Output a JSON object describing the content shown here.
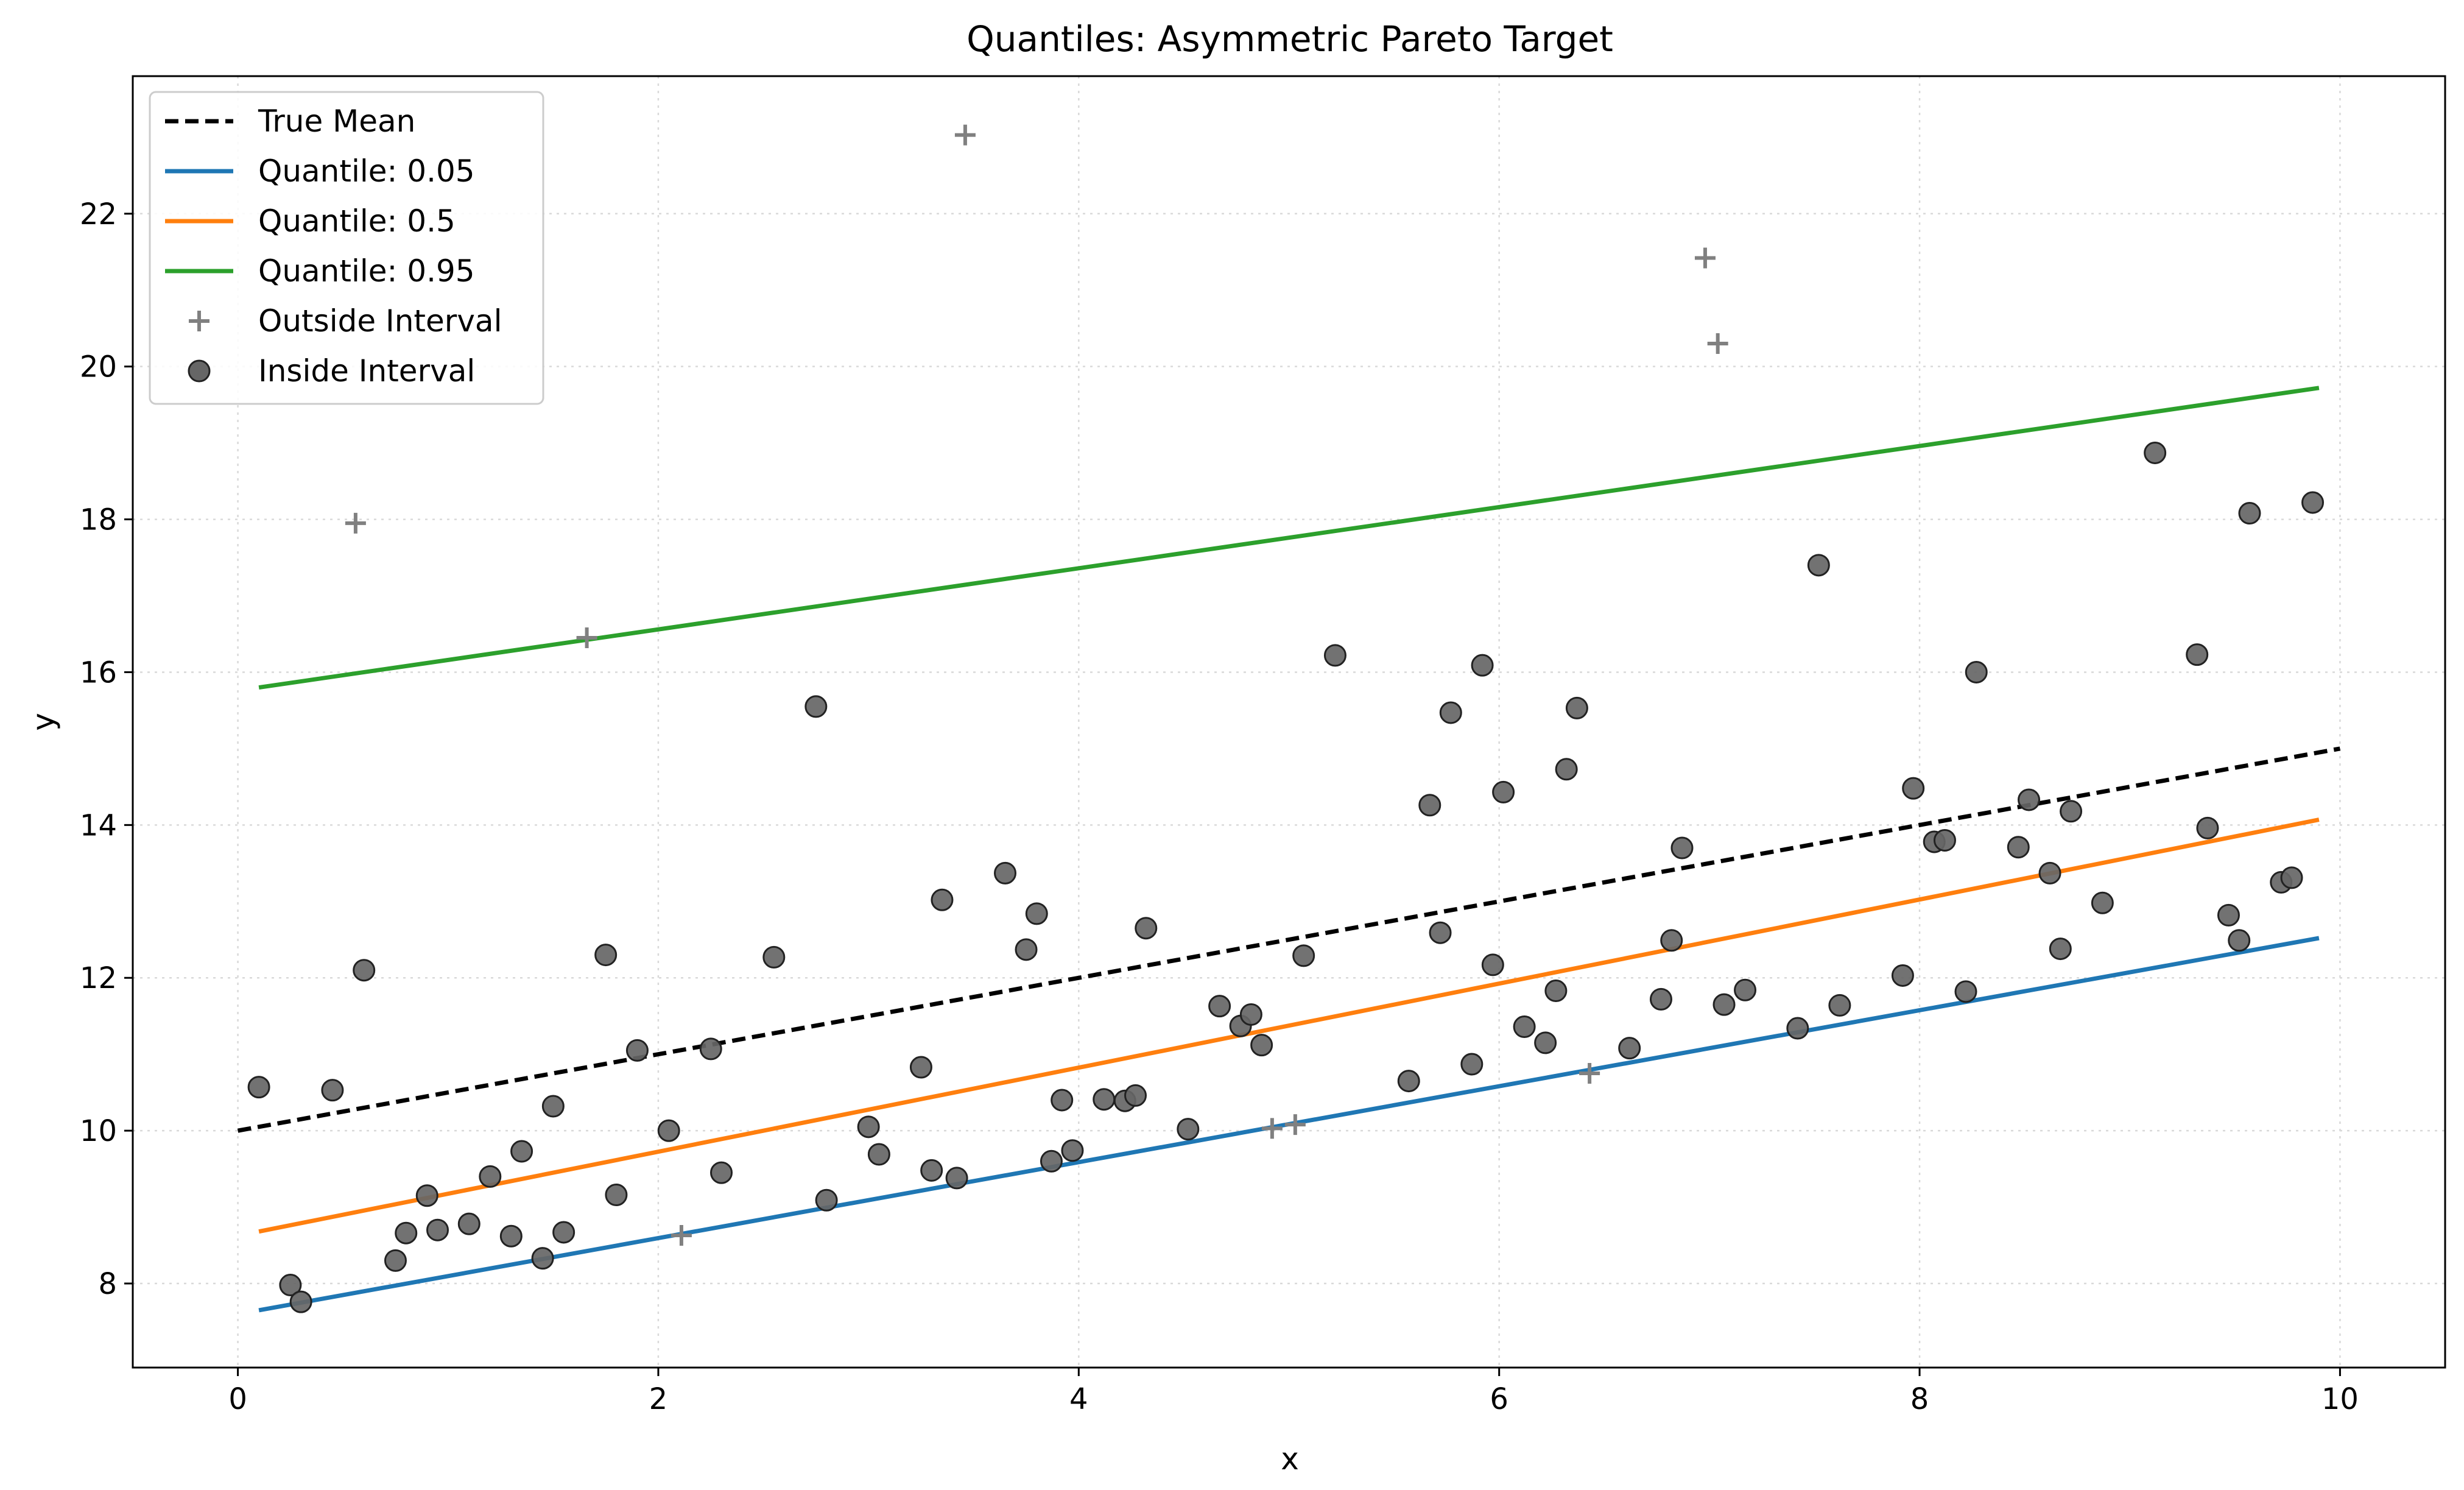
{
  "chart_data": {
    "type": "scatter",
    "title": "Quantiles: Asymmetric Pareto Target",
    "xlabel": "x",
    "ylabel": "y",
    "xlim": [
      -0.5,
      10.5
    ],
    "ylim": [
      6.9,
      23.8
    ],
    "xticks": [
      0,
      2,
      4,
      6,
      8,
      10
    ],
    "yticks": [
      8,
      10,
      12,
      14,
      16,
      18,
      20,
      22
    ],
    "grid": true,
    "legend_position": "top-left",
    "colors": {
      "true_mean": "#000000",
      "q05": "#1f77b4",
      "q50": "#ff7f0e",
      "q95": "#2ca02c",
      "outside": "#808080",
      "inside": "#666666"
    },
    "lines": [
      {
        "name": "True Mean",
        "style": "dashed",
        "color": "#000000",
        "x": [
          0,
          10
        ],
        "y": [
          10.0,
          15.0
        ]
      },
      {
        "name": "Quantile: 0.05",
        "style": "solid",
        "color": "#1f77b4",
        "x": [
          0.1,
          9.9
        ],
        "y": [
          7.65,
          12.52
        ]
      },
      {
        "name": "Quantile: 0.5",
        "style": "solid",
        "color": "#ff7f0e",
        "x": [
          0.1,
          9.9
        ],
        "y": [
          8.68,
          14.07
        ]
      },
      {
        "name": "Quantile: 0.95",
        "style": "solid",
        "color": "#2ca02c",
        "x": [
          0.1,
          9.9
        ],
        "y": [
          15.8,
          19.72
        ]
      }
    ],
    "outside_interval": {
      "name": "Outside Interval",
      "marker": "plus",
      "points": [
        [
          0.56,
          17.95
        ],
        [
          1.66,
          16.45
        ],
        [
          2.11,
          8.63
        ],
        [
          3.46,
          23.03
        ],
        [
          4.92,
          10.03
        ],
        [
          5.03,
          10.08
        ],
        [
          6.43,
          10.75
        ],
        [
          6.98,
          21.42
        ],
        [
          7.04,
          20.3
        ]
      ]
    },
    "inside_interval": {
      "name": "Inside Interval",
      "marker": "circle",
      "points": [
        [
          0.1,
          10.57
        ],
        [
          0.25,
          7.98
        ],
        [
          0.3,
          7.76
        ],
        [
          0.45,
          10.53
        ],
        [
          0.6,
          12.1
        ],
        [
          0.75,
          8.3
        ],
        [
          0.8,
          8.66
        ],
        [
          0.9,
          9.15
        ],
        [
          0.95,
          8.7
        ],
        [
          1.1,
          8.78
        ],
        [
          1.2,
          9.4
        ],
        [
          1.3,
          8.62
        ],
        [
          1.35,
          9.73
        ],
        [
          1.45,
          8.33
        ],
        [
          1.5,
          10.32
        ],
        [
          1.55,
          8.67
        ],
        [
          1.75,
          12.3
        ],
        [
          1.8,
          9.16
        ],
        [
          1.9,
          11.05
        ],
        [
          2.05,
          10.0
        ],
        [
          2.25,
          11.07
        ],
        [
          2.3,
          9.45
        ],
        [
          2.55,
          12.27
        ],
        [
          2.75,
          15.55
        ],
        [
          2.8,
          9.09
        ],
        [
          3.0,
          10.05
        ],
        [
          3.05,
          9.69
        ],
        [
          3.25,
          10.83
        ],
        [
          3.3,
          9.48
        ],
        [
          3.35,
          13.02
        ],
        [
          3.42,
          9.38
        ],
        [
          3.65,
          13.37
        ],
        [
          3.75,
          12.37
        ],
        [
          3.8,
          12.84
        ],
        [
          3.87,
          9.6
        ],
        [
          3.92,
          10.4
        ],
        [
          3.97,
          9.74
        ],
        [
          4.12,
          10.41
        ],
        [
          4.22,
          10.39
        ],
        [
          4.27,
          10.46
        ],
        [
          4.32,
          12.65
        ],
        [
          4.52,
          10.02
        ],
        [
          4.67,
          11.63
        ],
        [
          4.77,
          11.37
        ],
        [
          4.82,
          11.52
        ],
        [
          4.87,
          11.12
        ],
        [
          5.07,
          12.29
        ],
        [
          5.22,
          16.22
        ],
        [
          5.57,
          10.65
        ],
        [
          5.67,
          14.26
        ],
        [
          5.72,
          12.59
        ],
        [
          5.77,
          15.47
        ],
        [
          5.87,
          10.87
        ],
        [
          5.92,
          16.09
        ],
        [
          5.97,
          12.17
        ],
        [
          6.02,
          14.43
        ],
        [
          6.12,
          11.36
        ],
        [
          6.22,
          11.15
        ],
        [
          6.27,
          11.83
        ],
        [
          6.32,
          14.73
        ],
        [
          6.37,
          15.53
        ],
        [
          6.62,
          11.08
        ],
        [
          6.77,
          11.72
        ],
        [
          6.82,
          12.49
        ],
        [
          6.87,
          13.7
        ],
        [
          7.07,
          11.65
        ],
        [
          7.17,
          11.84
        ],
        [
          7.42,
          11.34
        ],
        [
          7.52,
          17.4
        ],
        [
          7.62,
          11.64
        ],
        [
          7.92,
          12.03
        ],
        [
          7.97,
          14.48
        ],
        [
          8.07,
          13.78
        ],
        [
          8.12,
          13.8
        ],
        [
          8.22,
          11.82
        ],
        [
          8.27,
          16.0
        ],
        [
          8.47,
          13.71
        ],
        [
          8.52,
          14.33
        ],
        [
          8.62,
          13.37
        ],
        [
          8.67,
          12.38
        ],
        [
          8.72,
          14.18
        ],
        [
          8.87,
          12.98
        ],
        [
          9.12,
          18.87
        ],
        [
          9.32,
          16.23
        ],
        [
          9.37,
          13.96
        ],
        [
          9.47,
          12.82
        ],
        [
          9.52,
          12.49
        ],
        [
          9.57,
          18.08
        ],
        [
          9.72,
          13.25
        ],
        [
          9.77,
          13.31
        ],
        [
          9.87,
          18.22
        ]
      ]
    },
    "legend": [
      {
        "label": "True Mean",
        "symbol": "dashed-line",
        "color": "#000000"
      },
      {
        "label": "Quantile: 0.05",
        "symbol": "line",
        "color": "#1f77b4"
      },
      {
        "label": "Quantile: 0.5",
        "symbol": "line",
        "color": "#ff7f0e"
      },
      {
        "label": "Quantile: 0.95",
        "symbol": "line",
        "color": "#2ca02c"
      },
      {
        "label": "Outside Interval",
        "symbol": "plus",
        "color": "#808080"
      },
      {
        "label": "Inside Interval",
        "symbol": "circle",
        "color": "#666666"
      }
    ]
  }
}
